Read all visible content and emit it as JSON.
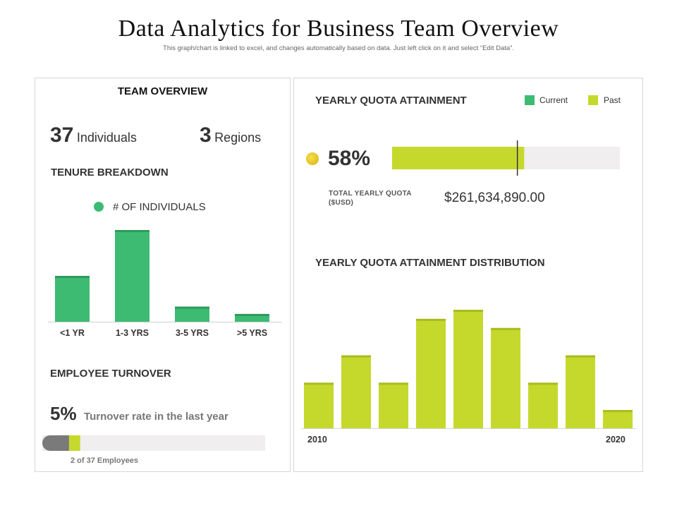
{
  "header": {
    "title": "Data Analytics for Business Team Overview",
    "subtitle": "This graph/chart is linked to excel, and changes automatically based on data. Just left click on it and select “Edit Data”."
  },
  "team": {
    "title": "TEAM OVERVIEW",
    "individuals_value": "37",
    "individuals_label": "Individuals",
    "regions_value": "3",
    "regions_label": "Regions"
  },
  "turnover": {
    "title": "EMPLOYEE TURNOVER",
    "rate": "5%",
    "text": "Turnover rate in the last year",
    "employees": "2 of 37 Employees",
    "dark_fraction": 0.12,
    "accent_fraction": 0.05
  },
  "quota": {
    "title": "YEARLY QUOTA ATTAINMENT",
    "percent": "58%",
    "percent_value": 0.58,
    "marker_value": 0.55,
    "total_label_line1": "TOTAL YEARLY QUOTA",
    "total_label_line2": "($USD)",
    "total_value": "$261,634,890.00",
    "legend": {
      "current": "Current",
      "past": "Past"
    }
  },
  "colors": {
    "green": "#3dbb73",
    "lime": "#c5d92d",
    "track": "#f0eeee",
    "grey": "#7a7a7a",
    "dot": "#e6c21a"
  },
  "chart_data": [
    {
      "type": "bar",
      "title": "TENURE BREAKDOWN",
      "legend": [
        "# OF INDIVIDUALS"
      ],
      "categories": [
        "<1 YR",
        "1-3 YRS",
        "3-5 YRS",
        ">5 YRS"
      ],
      "values": [
        10,
        20,
        3.3,
        1.7
      ],
      "ylim": [
        0,
        20
      ]
    },
    {
      "type": "bar",
      "title": "YEARLY QUOTA ATTAINMENT DISTRIBUTION",
      "x_start_label": "2010",
      "x_end_label": "2020",
      "values": [
        5,
        8,
        5,
        12,
        13,
        11,
        5,
        8,
        2
      ],
      "ylim": [
        0,
        13
      ]
    }
  ]
}
